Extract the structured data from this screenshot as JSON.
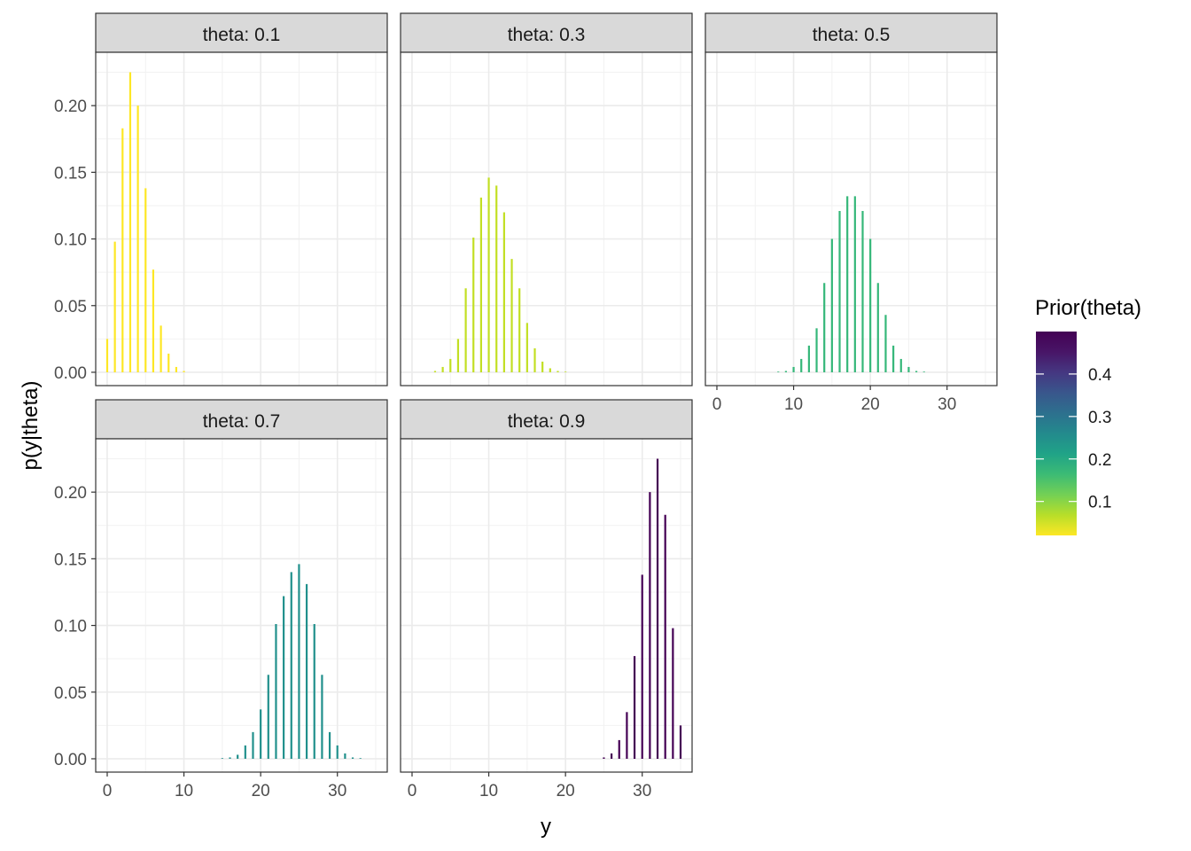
{
  "chart_data": {
    "type": "bar",
    "layout": "faceted",
    "xlabel": "y",
    "ylabel": "p(y|theta)",
    "xlim": [
      -1.5,
      36.5
    ],
    "ylim": [
      -0.01,
      0.24
    ],
    "x_ticks": [
      0,
      10,
      20,
      30
    ],
    "x_tick_labels": [
      "0",
      "10",
      "20",
      "30"
    ],
    "y_ticks": [
      0,
      0.05,
      0.1,
      0.15,
      0.2
    ],
    "y_tick_labels": [
      "0.00",
      "0.05",
      "0.10",
      "0.15",
      "0.20"
    ],
    "grid": true,
    "legend": {
      "title": "Prior(theta)",
      "position": "right",
      "type": "colorbar",
      "range": [
        0.02,
        0.5
      ],
      "breaks": [
        0.1,
        0.2,
        0.3,
        0.4
      ],
      "break_labels": [
        "0.1",
        "0.2",
        "0.3",
        "0.4"
      ],
      "palette": [
        "#FDE725",
        "#B8DE29",
        "#73D055",
        "#3CBB75",
        "#20A387",
        "#238A8D",
        "#2D708E",
        "#39568C",
        "#453781",
        "#481567",
        "#440154"
      ]
    },
    "facets": [
      {
        "label": "theta: 0.1",
        "color": "#FDE725",
        "show_x_axis": false,
        "show_y_axis": true,
        "x": [
          0,
          1,
          2,
          3,
          4,
          5,
          6,
          7,
          8,
          9,
          10
        ],
        "values": [
          0.025,
          0.098,
          0.183,
          0.225,
          0.2,
          0.138,
          0.077,
          0.035,
          0.014,
          0.004,
          0.001
        ]
      },
      {
        "label": "theta: 0.3",
        "color": "#C2DF23",
        "show_x_axis": false,
        "show_y_axis": false,
        "x": [
          3,
          4,
          5,
          6,
          7,
          8,
          9,
          10,
          11,
          12,
          13,
          14,
          15,
          16,
          17,
          18,
          19,
          20
        ],
        "values": [
          0.001,
          0.004,
          0.01,
          0.025,
          0.063,
          0.101,
          0.131,
          0.146,
          0.14,
          0.12,
          0.085,
          0.063,
          0.037,
          0.018,
          0.008,
          0.003,
          0.001,
          0.0005
        ]
      },
      {
        "label": "theta: 0.5",
        "color": "#35B779",
        "show_x_axis": true,
        "show_y_axis": false,
        "x": [
          8,
          9,
          10,
          11,
          12,
          13,
          14,
          15,
          16,
          17,
          18,
          19,
          20,
          21,
          22,
          23,
          24,
          25,
          26,
          27
        ],
        "values": [
          0.0005,
          0.001,
          0.004,
          0.01,
          0.02,
          0.033,
          0.067,
          0.1,
          0.121,
          0.132,
          0.132,
          0.121,
          0.1,
          0.067,
          0.043,
          0.02,
          0.01,
          0.004,
          0.001,
          0.0005
        ]
      },
      {
        "label": "theta: 0.7",
        "color": "#21908C",
        "show_x_axis": true,
        "show_y_axis": true,
        "x": [
          15,
          16,
          17,
          18,
          19,
          20,
          21,
          22,
          23,
          24,
          25,
          26,
          27,
          28,
          29,
          30,
          31,
          32,
          33
        ],
        "values": [
          0.0005,
          0.001,
          0.003,
          0.01,
          0.02,
          0.037,
          0.063,
          0.101,
          0.122,
          0.14,
          0.146,
          0.131,
          0.101,
          0.063,
          0.02,
          0.01,
          0.004,
          0.001,
          0.0005
        ]
      },
      {
        "label": "theta: 0.9",
        "color": "#440154",
        "show_x_axis": true,
        "show_y_axis": false,
        "x": [
          25,
          26,
          27,
          28,
          29,
          30,
          31,
          32,
          33,
          34,
          35
        ],
        "values": [
          0.001,
          0.004,
          0.014,
          0.035,
          0.077,
          0.138,
          0.2,
          0.225,
          0.183,
          0.098,
          0.025
        ]
      }
    ]
  }
}
